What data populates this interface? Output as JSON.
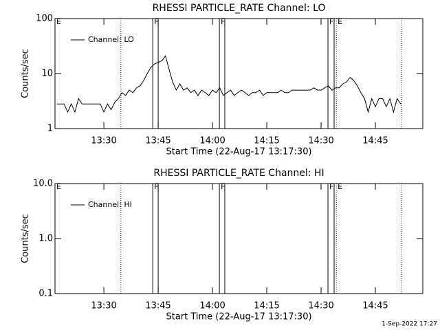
{
  "chart_data": [
    {
      "type": "line",
      "title": "RHESSI PARTICLE_RATE Channel: LO",
      "xlabel": "Start Time (22-Aug-17 13:17:30)",
      "ylabel": "Counts/sec",
      "x": [
        797,
        798,
        799,
        800,
        801,
        802,
        803,
        804,
        805,
        806,
        807,
        808,
        809,
        810,
        811,
        812,
        813,
        814,
        815,
        816,
        817,
        818,
        819,
        820,
        821,
        822,
        823,
        824,
        825,
        826,
        827,
        828,
        829,
        830,
        831,
        832,
        833,
        834,
        835,
        836,
        837,
        838,
        839,
        840,
        841,
        842,
        843,
        844,
        845,
        846,
        847,
        848,
        849,
        850,
        851,
        852,
        853,
        854,
        855,
        856,
        857,
        858,
        859,
        860,
        861,
        862,
        863,
        864,
        865,
        866,
        867,
        868,
        869,
        870,
        871,
        872,
        873,
        874,
        875,
        876,
        877,
        878,
        879,
        880,
        881,
        882,
        883,
        884,
        885,
        886,
        887,
        888,
        889,
        890,
        891,
        892
      ],
      "series": [
        {
          "name": "Channel: LO",
          "color": "#000000",
          "values": [
            2.8,
            2.8,
            2.8,
            2.0,
            2.8,
            2.0,
            3.5,
            2.8,
            2.8,
            2.8,
            2.8,
            2.8,
            2.8,
            2.0,
            2.8,
            2.2,
            3.0,
            3.5,
            4.5,
            4.0,
            5.0,
            4.5,
            5.5,
            6.0,
            7.5,
            10,
            13,
            15,
            16,
            17,
            21,
            12,
            7,
            5,
            6.5,
            5,
            5.5,
            4.5,
            5,
            4,
            5,
            4.5,
            4,
            5,
            4.5,
            5.5,
            4,
            4.5,
            5,
            4,
            4.5,
            5,
            4.5,
            4,
            4.5,
            4.5,
            5,
            4,
            4.5,
            4.5,
            4.5,
            4.5,
            5,
            4.5,
            4.5,
            5,
            5,
            5,
            5,
            5,
            5,
            5.5,
            5,
            5,
            5.5,
            6,
            5,
            5.5,
            5.5,
            6.5,
            7,
            8.5,
            7.5,
            6,
            4.5,
            3.5,
            2.0,
            3.5,
            2.5,
            3.5,
            3.5,
            2.5,
            3.5,
            2.0,
            3.5,
            2.8
          ]
        }
      ],
      "xlim": [
        796.5,
        898.1
      ],
      "xticks": [
        {
          "value": 810,
          "label": "13:30"
        },
        {
          "value": 825,
          "label": "13:45"
        },
        {
          "value": 840,
          "label": "14:00"
        },
        {
          "value": 855,
          "label": "14:15"
        },
        {
          "value": 870,
          "label": "14:30"
        },
        {
          "value": 885,
          "label": "14:45"
        }
      ],
      "ylim": [
        1,
        100
      ],
      "yticks": [
        1,
        10,
        100
      ],
      "ylog": true,
      "legend": "upper left",
      "markers": [
        {
          "label": "E",
          "x": 796.5,
          "style": "dotted"
        },
        {
          "x": 814.7,
          "style": "dotted"
        },
        {
          "label": "F",
          "x": 823.5,
          "style": "solid"
        },
        {
          "x": 825.0,
          "style": "solid"
        },
        {
          "label": "F",
          "x": 841.9,
          "style": "solid"
        },
        {
          "x": 843.4,
          "style": "solid"
        },
        {
          "label": "F",
          "x": 871.9,
          "style": "solid"
        },
        {
          "x": 873.6,
          "style": "solid"
        },
        {
          "label": "E",
          "x": 874.2,
          "style": "dotted"
        },
        {
          "x": 892.2,
          "style": "dotted"
        }
      ]
    },
    {
      "type": "line",
      "title": "RHESSI PARTICLE_RATE Channel: HI",
      "xlabel": "Start Time (22-Aug-17 13:17:30)",
      "ylabel": "Counts/sec",
      "x": [],
      "series": [
        {
          "name": "Channel: HI",
          "color": "#000000",
          "values": []
        }
      ],
      "xlim": [
        796.5,
        898.1
      ],
      "xticks": [
        {
          "value": 810,
          "label": "13:30"
        },
        {
          "value": 825,
          "label": "13:45"
        },
        {
          "value": 840,
          "label": "14:00"
        },
        {
          "value": 855,
          "label": "14:15"
        },
        {
          "value": 870,
          "label": "14:30"
        },
        {
          "value": 885,
          "label": "14:45"
        }
      ],
      "ylim": [
        0.1,
        10
      ],
      "yticks": [
        0.1,
        {
          "value": 1,
          "label": "1.0"
        },
        {
          "value": 10,
          "label": "10.0"
        }
      ],
      "ylog": true,
      "legend": "upper left",
      "markers": [
        {
          "label": "E",
          "x": 796.5,
          "style": "dotted"
        },
        {
          "x": 814.7,
          "style": "dotted"
        },
        {
          "label": "F",
          "x": 823.5,
          "style": "solid"
        },
        {
          "x": 825.0,
          "style": "solid"
        },
        {
          "label": "F",
          "x": 841.9,
          "style": "solid"
        },
        {
          "x": 843.4,
          "style": "solid"
        },
        {
          "label": "F",
          "x": 871.9,
          "style": "solid"
        },
        {
          "x": 873.6,
          "style": "solid"
        },
        {
          "label": "E",
          "x": 874.2,
          "style": "dotted"
        },
        {
          "x": 892.2,
          "style": "dotted"
        }
      ]
    }
  ],
  "footer": "1-Sep-2022 17:27"
}
